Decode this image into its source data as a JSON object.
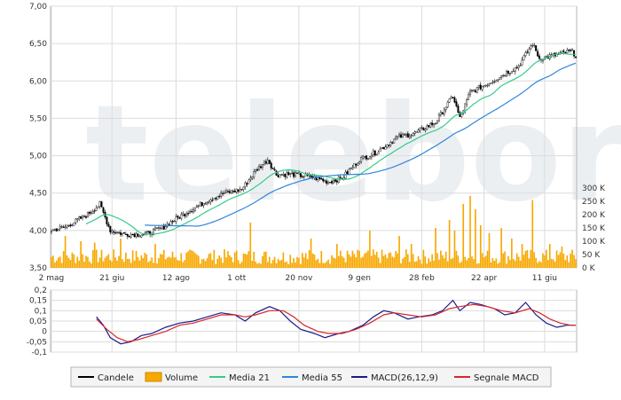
{
  "chart_data": [
    {
      "type": "candlestick",
      "panel": "price",
      "ylim": [
        3.5,
        7.0
      ],
      "yticks": [
        "3,50",
        "4,00",
        "4,50",
        "5,00",
        "5,50",
        "6,00",
        "6,50",
        "7,00"
      ],
      "ytick_values": [
        3.5,
        4.0,
        4.5,
        5.0,
        5.5,
        6.0,
        6.5,
        7.0
      ],
      "x_tick_labels": [
        "2 mag",
        "21 giu",
        "12 ago",
        "1 ott",
        "20 nov",
        "9 gen",
        "28 feb",
        "22 apr",
        "11 giu"
      ],
      "x_tick_bars": [
        0,
        35,
        72,
        107,
        143,
        178,
        214,
        250,
        285
      ],
      "num_bars": 304,
      "close_anchors": [
        [
          0,
          4.0
        ],
        [
          8,
          4.05
        ],
        [
          20,
          4.2
        ],
        [
          28,
          4.35
        ],
        [
          34,
          4.0
        ],
        [
          42,
          3.95
        ],
        [
          55,
          3.95
        ],
        [
          65,
          4.05
        ],
        [
          75,
          4.2
        ],
        [
          90,
          4.4
        ],
        [
          100,
          4.5
        ],
        [
          110,
          4.55
        ],
        [
          118,
          4.8
        ],
        [
          125,
          4.95
        ],
        [
          130,
          4.75
        ],
        [
          140,
          4.75
        ],
        [
          150,
          4.72
        ],
        [
          160,
          4.65
        ],
        [
          168,
          4.7
        ],
        [
          178,
          4.95
        ],
        [
          188,
          5.05
        ],
        [
          200,
          5.25
        ],
        [
          210,
          5.3
        ],
        [
          222,
          5.45
        ],
        [
          232,
          5.8
        ],
        [
          236,
          5.5
        ],
        [
          242,
          5.85
        ],
        [
          255,
          6.0
        ],
        [
          262,
          6.1
        ],
        [
          270,
          6.2
        ],
        [
          278,
          6.5
        ],
        [
          282,
          6.3
        ],
        [
          292,
          6.35
        ],
        [
          300,
          6.4
        ],
        [
          303,
          6.35
        ]
      ],
      "series": [
        {
          "name": "Candele",
          "color": "#000000"
        },
        {
          "name": "Media 21",
          "color": "#33cc88"
        },
        {
          "name": "Media 55",
          "color": "#2f86d8"
        }
      ]
    },
    {
      "type": "bar",
      "panel": "volume",
      "name": "Volume",
      "ylim": [
        0,
        300000
      ],
      "yticks": [
        "0 K",
        "50 K",
        "100 K",
        "150 K",
        "200 K",
        "250 K",
        "300 K"
      ],
      "ytick_values": [
        0,
        50000,
        100000,
        150000,
        200000,
        250000,
        300000
      ],
      "base_level": 40000,
      "spikes": [
        [
          8,
          120000
        ],
        [
          17,
          100000
        ],
        [
          25,
          95000
        ],
        [
          40,
          110000
        ],
        [
          60,
          90000
        ],
        [
          115,
          170000
        ],
        [
          150,
          110000
        ],
        [
          165,
          90000
        ],
        [
          184,
          140000
        ],
        [
          201,
          120000
        ],
        [
          208,
          90000
        ],
        [
          222,
          150000
        ],
        [
          230,
          180000
        ],
        [
          233,
          140000
        ],
        [
          238,
          240000
        ],
        [
          242,
          270000
        ],
        [
          245,
          220000
        ],
        [
          248,
          160000
        ],
        [
          253,
          130000
        ],
        [
          260,
          150000
        ],
        [
          266,
          110000
        ],
        [
          272,
          90000
        ],
        [
          278,
          255000
        ],
        [
          288,
          90000
        ],
        [
          295,
          80000
        ]
      ],
      "color": "#f7a800"
    },
    {
      "type": "line",
      "panel": "macd",
      "ylim": [
        -0.1,
        0.2
      ],
      "yticks": [
        "-0,1",
        "-0,05",
        "0",
        "0,05",
        "0,1",
        "0,15",
        "0,2"
      ],
      "ytick_values": [
        -0.1,
        -0.05,
        0,
        0.05,
        0.1,
        0.15,
        0.2
      ],
      "series": [
        {
          "name": "MACD(26,12,9)",
          "color": "#1c1c8c",
          "points": [
            [
              26,
              0.07
            ],
            [
              30,
              0.03
            ],
            [
              34,
              -0.03
            ],
            [
              40,
              -0.06
            ],
            [
              46,
              -0.05
            ],
            [
              52,
              -0.02
            ],
            [
              58,
              -0.01
            ],
            [
              66,
              0.02
            ],
            [
              74,
              0.04
            ],
            [
              82,
              0.05
            ],
            [
              90,
              0.07
            ],
            [
              98,
              0.09
            ],
            [
              106,
              0.08
            ],
            [
              112,
              0.05
            ],
            [
              118,
              0.09
            ],
            [
              126,
              0.12
            ],
            [
              132,
              0.1
            ],
            [
              138,
              0.05
            ],
            [
              144,
              0.01
            ],
            [
              152,
              -0.01
            ],
            [
              158,
              -0.03
            ],
            [
              166,
              -0.01
            ],
            [
              172,
              0.0
            ],
            [
              180,
              0.03
            ],
            [
              186,
              0.07
            ],
            [
              192,
              0.1
            ],
            [
              198,
              0.09
            ],
            [
              206,
              0.06
            ],
            [
              212,
              0.07
            ],
            [
              220,
              0.08
            ],
            [
              226,
              0.1
            ],
            [
              232,
              0.15
            ],
            [
              236,
              0.1
            ],
            [
              242,
              0.14
            ],
            [
              248,
              0.13
            ],
            [
              256,
              0.11
            ],
            [
              262,
              0.08
            ],
            [
              268,
              0.09
            ],
            [
              274,
              0.14
            ],
            [
              280,
              0.08
            ],
            [
              286,
              0.04
            ],
            [
              292,
              0.02
            ],
            [
              298,
              0.03
            ],
            [
              303,
              0.03
            ]
          ]
        },
        {
          "name": "Segnale MACD",
          "color": "#d62728",
          "points": [
            [
              26,
              0.06
            ],
            [
              32,
              0.01
            ],
            [
              38,
              -0.03
            ],
            [
              44,
              -0.05
            ],
            [
              50,
              -0.04
            ],
            [
              58,
              -0.02
            ],
            [
              66,
              0.0
            ],
            [
              74,
              0.03
            ],
            [
              82,
              0.04
            ],
            [
              90,
              0.06
            ],
            [
              98,
              0.08
            ],
            [
              106,
              0.08
            ],
            [
              112,
              0.07
            ],
            [
              118,
              0.08
            ],
            [
              126,
              0.1
            ],
            [
              134,
              0.1
            ],
            [
              140,
              0.07
            ],
            [
              146,
              0.03
            ],
            [
              154,
              0.0
            ],
            [
              160,
              -0.01
            ],
            [
              168,
              -0.01
            ],
            [
              176,
              0.01
            ],
            [
              184,
              0.04
            ],
            [
              192,
              0.08
            ],
            [
              198,
              0.09
            ],
            [
              206,
              0.08
            ],
            [
              214,
              0.07
            ],
            [
              222,
              0.08
            ],
            [
              230,
              0.11
            ],
            [
              236,
              0.12
            ],
            [
              244,
              0.13
            ],
            [
              252,
              0.12
            ],
            [
              260,
              0.1
            ],
            [
              268,
              0.09
            ],
            [
              276,
              0.11
            ],
            [
              282,
              0.09
            ],
            [
              288,
              0.06
            ],
            [
              294,
              0.04
            ],
            [
              300,
              0.03
            ],
            [
              303,
              0.03
            ]
          ]
        }
      ]
    }
  ],
  "watermark": "teleborsa",
  "legend": [
    {
      "label": "Candele",
      "color": "#000000",
      "swatch": "line"
    },
    {
      "label": "Volume",
      "color": "#f7a800",
      "swatch": "box"
    },
    {
      "label": "Media 21",
      "color": "#33cc88",
      "swatch": "line"
    },
    {
      "label": "Media 55",
      "color": "#2f86d8",
      "swatch": "line"
    },
    {
      "label": "MACD(26,12,9)",
      "color": "#1c1c8c",
      "swatch": "line"
    },
    {
      "label": "Segnale MACD",
      "color": "#d62728",
      "swatch": "line"
    }
  ]
}
